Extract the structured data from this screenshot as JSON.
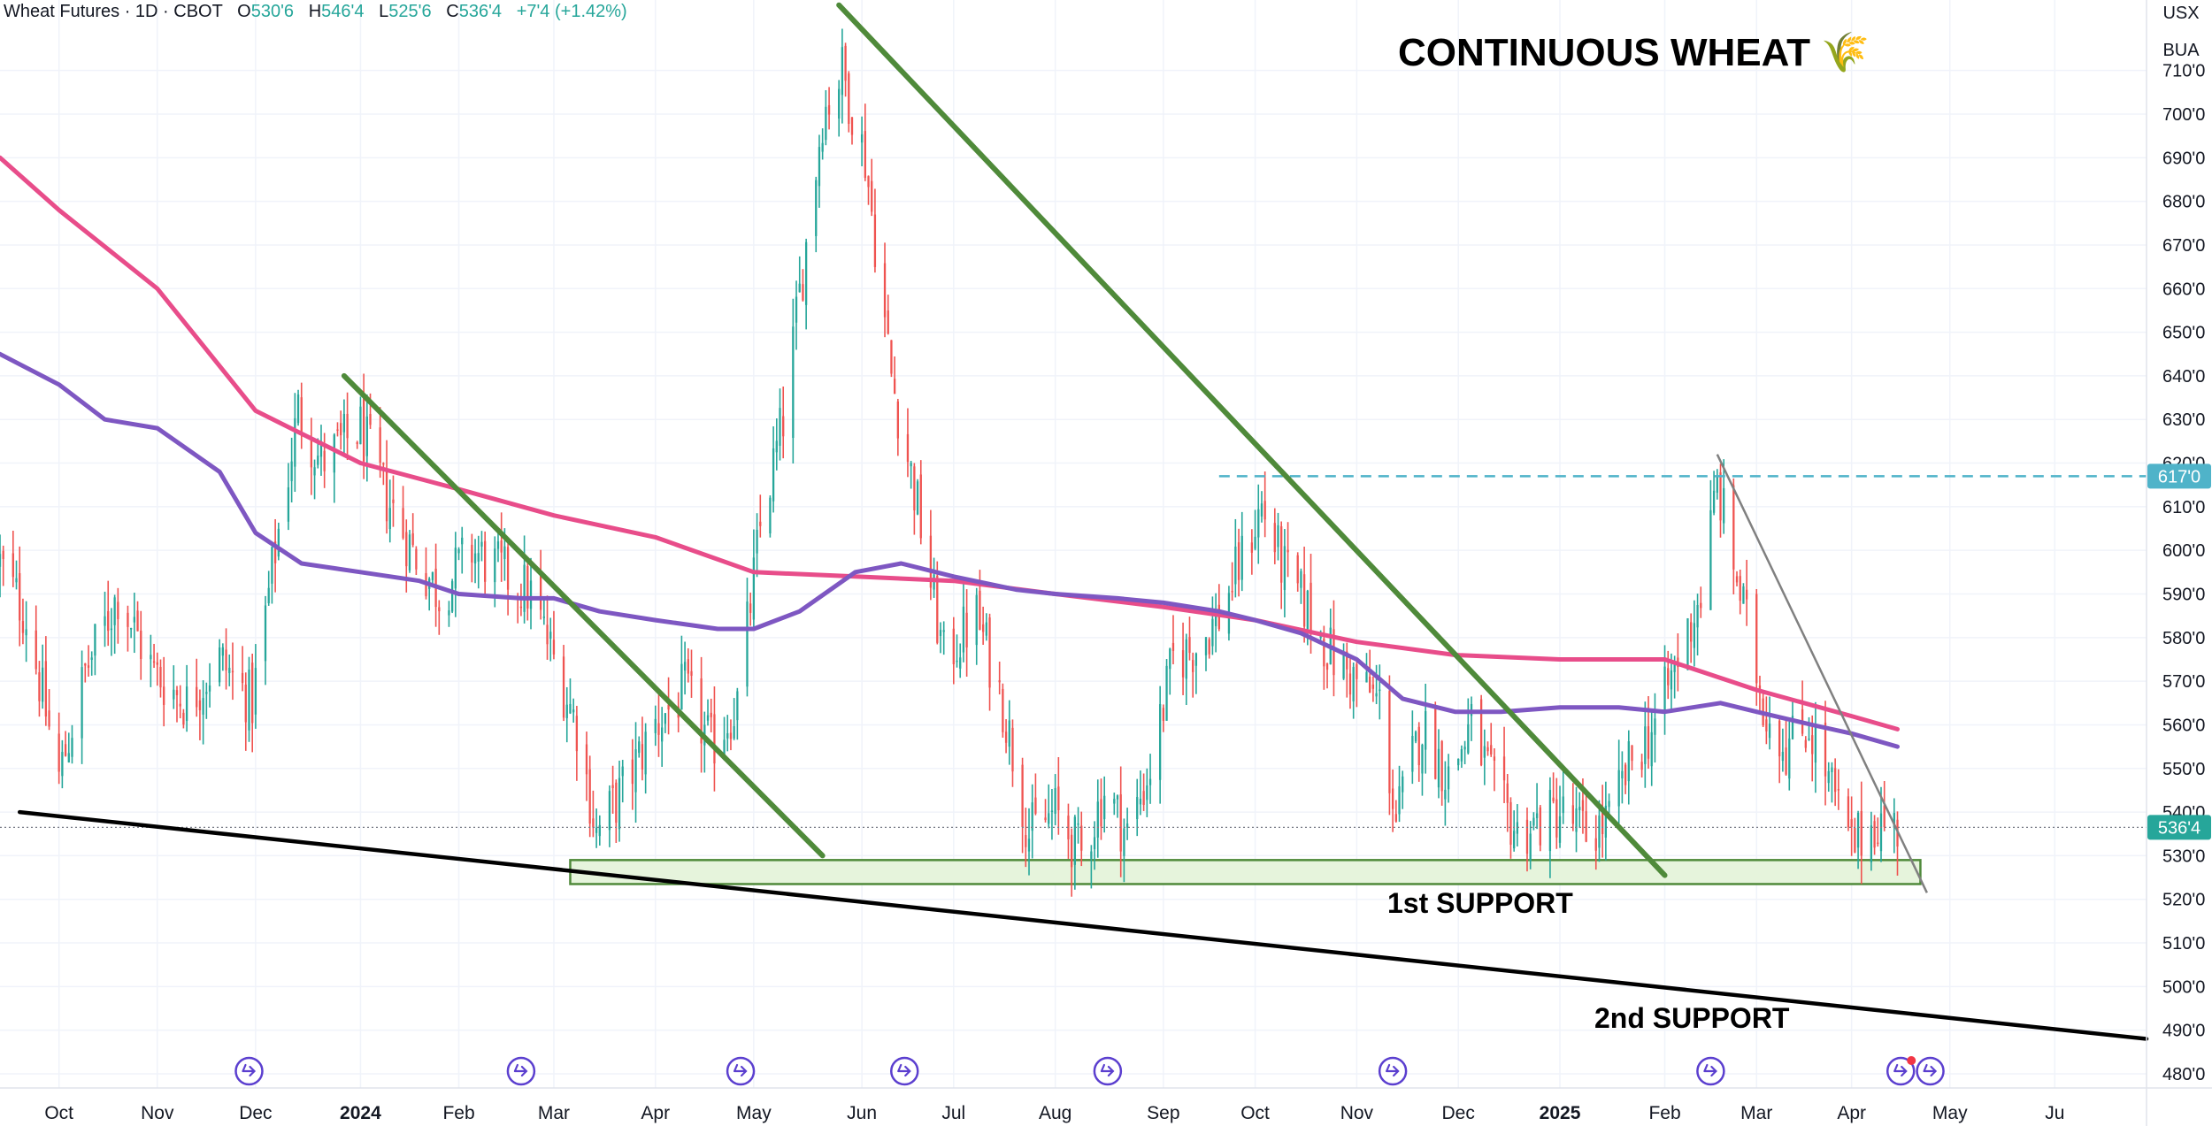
{
  "header": {
    "symbol": "Wheat Futures · 1D · CBOT",
    "open_label": "O",
    "open": "530'6",
    "high_label": "H",
    "high": "546'4",
    "low_label": "L",
    "low": "525'6",
    "close_label": "C",
    "close": "536'4",
    "change": "+7'4 (+1.42%)"
  },
  "scale_buttons": {
    "currency": "USX",
    "unit": "BUA"
  },
  "colors": {
    "up": "#26a69a",
    "down": "#ef5350",
    "ma_fast": "#7e57c2",
    "ma_slow": "#e84d8a",
    "trendline": "#4f8a3a",
    "support_line": "#000000",
    "support_zone_fill": "#e6f4dc",
    "support_zone_stroke": "#4f8a3a",
    "resistance": "#4fb3c9",
    "last_price": "#26a69a",
    "grid": "#f0f3fa"
  },
  "chart_data": {
    "type": "candlestick",
    "title": "CONTINUOUS WHEAT 🌾",
    "y_axis": {
      "ylim": [
        474,
        737
      ],
      "ticks": [
        "480'0",
        "490'0",
        "500'0",
        "510'0",
        "520'0",
        "530'0",
        "540'0",
        "550'0",
        "560'0",
        "570'0",
        "580'0",
        "590'0",
        "600'0",
        "610'0",
        "620'0",
        "630'0",
        "640'0",
        "650'0",
        "660'0",
        "670'0",
        "680'0",
        "690'0",
        "700'0",
        "710'0"
      ],
      "tick_values": [
        480,
        490,
        500,
        510,
        520,
        530,
        540,
        550,
        560,
        570,
        580,
        590,
        600,
        610,
        620,
        630,
        640,
        650,
        660,
        670,
        680,
        690,
        700,
        710
      ]
    },
    "x_axis": {
      "range": [
        "2023-09-14",
        "2025-06-30"
      ],
      "ticks": [
        {
          "label": "Oct",
          "date": "2023-10-02"
        },
        {
          "label": "Nov",
          "date": "2023-11-01"
        },
        {
          "label": "Dec",
          "date": "2023-12-01"
        },
        {
          "label": "2024",
          "date": "2024-01-02",
          "bold": true
        },
        {
          "label": "Feb",
          "date": "2024-02-01"
        },
        {
          "label": "Mar",
          "date": "2024-03-01"
        },
        {
          "label": "Apr",
          "date": "2024-04-01"
        },
        {
          "label": "May",
          "date": "2024-05-01"
        },
        {
          "label": "Jun",
          "date": "2024-06-03"
        },
        {
          "label": "Jul",
          "date": "2024-07-01"
        },
        {
          "label": "Aug",
          "date": "2024-08-01"
        },
        {
          "label": "Sep",
          "date": "2024-09-03"
        },
        {
          "label": "Oct",
          "date": "2024-10-01"
        },
        {
          "label": "Nov",
          "date": "2024-11-01"
        },
        {
          "label": "Dec",
          "date": "2024-12-02"
        },
        {
          "label": "2025",
          "date": "2025-01-02",
          "bold": true
        },
        {
          "label": "Feb",
          "date": "2025-02-03"
        },
        {
          "label": "Mar",
          "date": "2025-03-03"
        },
        {
          "label": "Apr",
          "date": "2025-04-01"
        },
        {
          "label": "May",
          "date": "2025-05-01"
        },
        {
          "label": "Ju",
          "date": "2025-06-02"
        }
      ]
    },
    "price_path": [
      [
        "2023-09-14",
        597
      ],
      [
        "2023-09-22",
        585
      ],
      [
        "2023-10-02",
        548
      ],
      [
        "2023-10-10",
        572
      ],
      [
        "2023-10-20",
        590
      ],
      [
        "2023-10-31",
        572
      ],
      [
        "2023-11-10",
        565
      ],
      [
        "2023-11-20",
        575
      ],
      [
        "2023-11-30",
        565
      ],
      [
        "2023-12-07",
        600
      ],
      [
        "2023-12-14",
        632
      ],
      [
        "2023-12-21",
        620
      ],
      [
        "2024-01-02",
        628
      ],
      [
        "2024-01-10",
        612
      ],
      [
        "2024-01-18",
        600
      ],
      [
        "2024-01-26",
        590
      ],
      [
        "2024-02-05",
        600
      ],
      [
        "2024-02-14",
        595
      ],
      [
        "2024-02-23",
        590
      ],
      [
        "2024-03-01",
        575
      ],
      [
        "2024-03-08",
        560
      ],
      [
        "2024-03-14",
        535
      ],
      [
        "2024-03-22",
        545
      ],
      [
        "2024-04-01",
        560
      ],
      [
        "2024-04-10",
        568
      ],
      [
        "2024-04-18",
        555
      ],
      [
        "2024-04-26",
        565
      ],
      [
        "2024-05-03",
        605
      ],
      [
        "2024-05-10",
        630
      ],
      [
        "2024-05-17",
        670
      ],
      [
        "2024-05-22",
        700
      ],
      [
        "2024-05-28",
        710
      ],
      [
        "2024-06-04",
        690
      ],
      [
        "2024-06-12",
        640
      ],
      [
        "2024-06-20",
        610
      ],
      [
        "2024-06-28",
        575
      ],
      [
        "2024-07-08",
        585
      ],
      [
        "2024-07-16",
        565
      ],
      [
        "2024-07-24",
        535
      ],
      [
        "2024-08-01",
        540
      ],
      [
        "2024-08-09",
        530
      ],
      [
        "2024-08-16",
        545
      ],
      [
        "2024-08-23",
        535
      ],
      [
        "2024-08-30",
        550
      ],
      [
        "2024-09-06",
        575
      ],
      [
        "2024-09-13",
        578
      ],
      [
        "2024-09-20",
        585
      ],
      [
        "2024-09-27",
        598
      ],
      [
        "2024-10-03",
        610
      ],
      [
        "2024-10-10",
        595
      ],
      [
        "2024-10-18",
        585
      ],
      [
        "2024-10-25",
        575
      ],
      [
        "2024-11-01",
        570
      ],
      [
        "2024-11-08",
        565
      ],
      [
        "2024-11-13",
        538
      ],
      [
        "2024-11-21",
        560
      ],
      [
        "2024-11-29",
        548
      ],
      [
        "2024-12-06",
        560
      ],
      [
        "2024-12-13",
        545
      ],
      [
        "2024-12-20",
        535
      ],
      [
        "2025-01-02",
        540
      ],
      [
        "2025-01-10",
        535
      ],
      [
        "2025-01-17",
        538
      ],
      [
        "2025-01-24",
        552
      ],
      [
        "2025-01-31",
        560
      ],
      [
        "2025-02-07",
        575
      ],
      [
        "2025-02-14",
        590
      ],
      [
        "2025-02-19",
        615
      ],
      [
        "2025-02-26",
        590
      ],
      [
        "2025-03-05",
        565
      ],
      [
        "2025-03-12",
        555
      ],
      [
        "2025-03-19",
        560
      ],
      [
        "2025-03-26",
        545
      ],
      [
        "2025-04-01",
        532
      ],
      [
        "2025-04-08",
        538
      ],
      [
        "2025-04-15",
        536.5
      ]
    ],
    "ma_fast_path": [
      [
        "2023-09-14",
        645
      ],
      [
        "2023-10-02",
        638
      ],
      [
        "2023-10-16",
        630
      ],
      [
        "2023-11-01",
        628
      ],
      [
        "2023-11-20",
        618
      ],
      [
        "2023-12-01",
        604
      ],
      [
        "2023-12-15",
        597
      ],
      [
        "2024-01-02",
        595
      ],
      [
        "2024-01-20",
        593
      ],
      [
        "2024-02-01",
        590
      ],
      [
        "2024-02-20",
        589
      ],
      [
        "2024-03-01",
        589
      ],
      [
        "2024-03-15",
        586
      ],
      [
        "2024-04-01",
        584
      ],
      [
        "2024-04-20",
        582
      ],
      [
        "2024-05-01",
        582
      ],
      [
        "2024-05-15",
        586
      ],
      [
        "2024-06-01",
        595
      ],
      [
        "2024-06-15",
        597
      ],
      [
        "2024-07-01",
        594
      ],
      [
        "2024-07-20",
        591
      ],
      [
        "2024-08-01",
        590
      ],
      [
        "2024-08-20",
        589
      ],
      [
        "2024-09-03",
        588
      ],
      [
        "2024-09-20",
        586
      ],
      [
        "2024-10-01",
        584
      ],
      [
        "2024-10-15",
        581
      ],
      [
        "2024-11-01",
        575
      ],
      [
        "2024-11-15",
        566
      ],
      [
        "2024-12-01",
        563
      ],
      [
        "2024-12-15",
        563
      ],
      [
        "2025-01-02",
        564
      ],
      [
        "2025-01-20",
        564
      ],
      [
        "2025-02-03",
        563
      ],
      [
        "2025-02-20",
        565
      ],
      [
        "2025-03-03",
        563
      ],
      [
        "2025-03-20",
        560
      ],
      [
        "2025-04-01",
        558
      ],
      [
        "2025-04-15",
        555
      ]
    ],
    "ma_slow_path": [
      [
        "2023-09-14",
        690
      ],
      [
        "2023-10-02",
        678
      ],
      [
        "2023-11-01",
        660
      ],
      [
        "2023-12-01",
        632
      ],
      [
        "2024-01-02",
        620
      ],
      [
        "2024-02-01",
        614
      ],
      [
        "2024-03-01",
        608
      ],
      [
        "2024-04-01",
        603
      ],
      [
        "2024-05-01",
        595
      ],
      [
        "2024-06-01",
        594
      ],
      [
        "2024-07-01",
        593
      ],
      [
        "2024-08-01",
        590
      ],
      [
        "2024-09-03",
        587
      ],
      [
        "2024-10-01",
        584
      ],
      [
        "2024-11-01",
        579
      ],
      [
        "2024-12-01",
        576
      ],
      [
        "2025-01-02",
        575
      ],
      [
        "2025-02-03",
        575
      ],
      [
        "2025-03-03",
        568
      ],
      [
        "2025-04-01",
        562
      ],
      [
        "2025-04-15",
        559
      ]
    ],
    "support_zone": {
      "label": "1st SUPPORT",
      "from": "2024-03-06",
      "to": "2025-04-22",
      "low": 523.5,
      "high": 529
    },
    "support_line": {
      "label": "2nd SUPPORT",
      "from": [
        "2023-09-20",
        540
      ],
      "to": [
        "2025-06-30",
        488
      ]
    },
    "trendlines": [
      {
        "from": [
          "2023-12-28",
          640
        ],
        "to": [
          "2024-05-22",
          530
        ]
      },
      {
        "from": [
          "2024-05-27",
          725
        ],
        "to": [
          "2025-02-03",
          525.5
        ]
      }
    ],
    "thin_trendline": {
      "from": [
        "2025-02-19",
        622
      ],
      "to": [
        "2025-04-24",
        521.5
      ]
    },
    "resistance": {
      "label": "617'0",
      "value": 617,
      "from": "2024-09-20"
    },
    "last_price": {
      "label": "536'4",
      "value": 536.5
    },
    "event_markers": [
      "2023-11-29",
      "2024-02-20",
      "2024-04-27",
      "2024-06-16",
      "2024-08-17",
      "2024-11-12",
      "2025-02-17",
      "2025-04-16",
      "2025-04-25"
    ]
  }
}
